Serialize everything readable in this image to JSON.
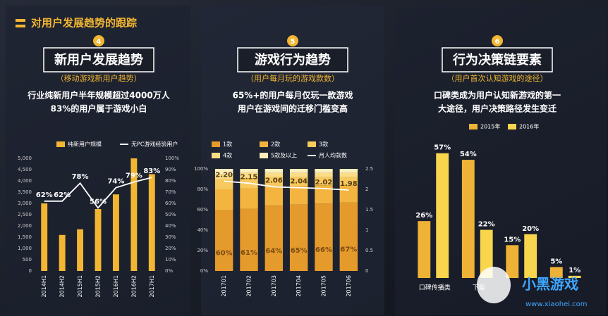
{
  "header": {
    "title": "对用户发展趋势的跟踪"
  },
  "chart_data": [
    {
      "type": "bar",
      "number": "4",
      "title": "新用户发展趋势",
      "subtitle": "（移动游戏新用户趋势）",
      "description": [
        "行业纯新用户半年规模超过4000万人",
        "83%的用户属于游戏小白"
      ],
      "categories": [
        "2014H1",
        "2014H2",
        "2015H1",
        "2015H2",
        "2016H1",
        "2016H2",
        "2017H1"
      ],
      "series": [
        {
          "name": "纯新用户规模",
          "color": "#f2b632",
          "values": [
            3000,
            1600,
            1850,
            2750,
            3400,
            5000,
            4300
          ]
        },
        {
          "name": "无PC游戏经验用户",
          "color": "#ffffff",
          "type": "line",
          "axis": "y2",
          "values": [
            62,
            62,
            78,
            56,
            74,
            79,
            83
          ],
          "value_labels": [
            "62%",
            "62%",
            "78%",
            "56%",
            "74%",
            "79%",
            "83%"
          ]
        }
      ],
      "ylim": [
        0,
        5000
      ],
      "yticks": [
        0,
        500,
        {
          "value": 1000,
          "label": "1,000"
        },
        {
          "value": 1500,
          "label": "1,500"
        },
        {
          "value": 2000,
          "label": "2,000"
        },
        {
          "value": 2500,
          "label": "2,500"
        },
        {
          "value": 3000,
          "label": "3,000"
        },
        {
          "value": 3500,
          "label": "3,500"
        },
        {
          "value": 4000,
          "label": "4,000"
        },
        {
          "value": 4500,
          "label": "4,500"
        },
        {
          "value": 5000,
          "label": "5,000"
        }
      ],
      "y2lim": [
        0,
        100
      ],
      "y2ticks": [
        {
          "value": 0,
          "label": "0%"
        },
        {
          "value": 10,
          "label": "10%"
        },
        {
          "value": 20,
          "label": "20%"
        },
        {
          "value": 30,
          "label": "30%"
        },
        {
          "value": 40,
          "label": "40%"
        },
        {
          "value": 50,
          "label": "50%"
        },
        {
          "value": 60,
          "label": "60%"
        },
        {
          "value": 70,
          "label": "70%"
        },
        {
          "value": 80,
          "label": "80%"
        },
        {
          "value": 90,
          "label": "90%"
        },
        {
          "value": 100,
          "label": "100%"
        }
      ]
    },
    {
      "type": "bar",
      "stacked": true,
      "number": "5",
      "title": "游戏行为趋势",
      "subtitle": "（用户每月玩的游戏款数）",
      "description": [
        "65%+的用户每月仅玩一款游戏",
        "用户在游戏间的迁移门槛变高"
      ],
      "categories": [
        "201701",
        "201702",
        "201703",
        "201704",
        "201705",
        "201706"
      ],
      "series": [
        {
          "name": "1款",
          "color": "#e59a2c",
          "values": [
            60,
            61,
            64,
            65,
            66,
            67
          ],
          "value_labels": [
            "60%",
            "61%",
            "64%",
            "65%",
            "66%",
            "67%"
          ]
        },
        {
          "name": "2款",
          "color": "#f3b540",
          "values": [
            20,
            20,
            19,
            18,
            18,
            17
          ]
        },
        {
          "name": "3款",
          "color": "#f7c95e",
          "values": [
            10,
            10,
            9,
            9,
            8,
            8
          ]
        },
        {
          "name": "4款",
          "color": "#fadd86",
          "values": [
            5,
            5,
            4,
            4,
            4,
            4
          ]
        },
        {
          "name": "5款及以上",
          "color": "#fdefbb",
          "values": [
            5,
            4,
            4,
            4,
            4,
            4
          ]
        },
        {
          "name": "月人均款数",
          "color": "#ffffff",
          "type": "line",
          "axis": "y2",
          "values": [
            2.2,
            2.15,
            2.06,
            2.04,
            2.02,
            1.98
          ],
          "value_labels": [
            "2.20",
            "2.15",
            "2.06",
            "2.04",
            "2.02",
            "1.98"
          ]
        }
      ],
      "ylim": [
        0,
        100
      ],
      "yticks": [
        {
          "value": 0,
          "label": "0%"
        },
        {
          "value": 20,
          "label": "20%"
        },
        {
          "value": 40,
          "label": "40%"
        },
        {
          "value": 60,
          "label": "60%"
        },
        {
          "value": 80,
          "label": "80%"
        },
        {
          "value": 100,
          "label": "100%"
        }
      ],
      "y2lim": [
        0,
        2.5
      ],
      "y2ticks": [
        0,
        0.5,
        1,
        1.5,
        2,
        2.5
      ]
    },
    {
      "type": "bar",
      "number": "6",
      "title": "行为决策链要素",
      "subtitle": "（用户首次认知游戏的途径）",
      "description": [
        "口碑类成为用户认知新游戏的第一",
        "大途径，用户决策路径发生变迁"
      ],
      "categories": [
        "口碑传播类",
        "下载",
        null,
        null
      ],
      "series": [
        {
          "name": "2015年",
          "color": "#eeb236",
          "values": [
            26,
            54,
            15,
            5
          ],
          "value_labels": [
            "26%",
            "54%",
            "15%",
            "5%"
          ]
        },
        {
          "name": "2016年",
          "color": "#f8d54c",
          "values": [
            57,
            22,
            20,
            1
          ],
          "value_labels": [
            "57%",
            "22%",
            "20%",
            "1%"
          ]
        }
      ]
    }
  ],
  "watermark": {
    "name": "小黑游戏",
    "url": "www.xiaohei.com"
  }
}
